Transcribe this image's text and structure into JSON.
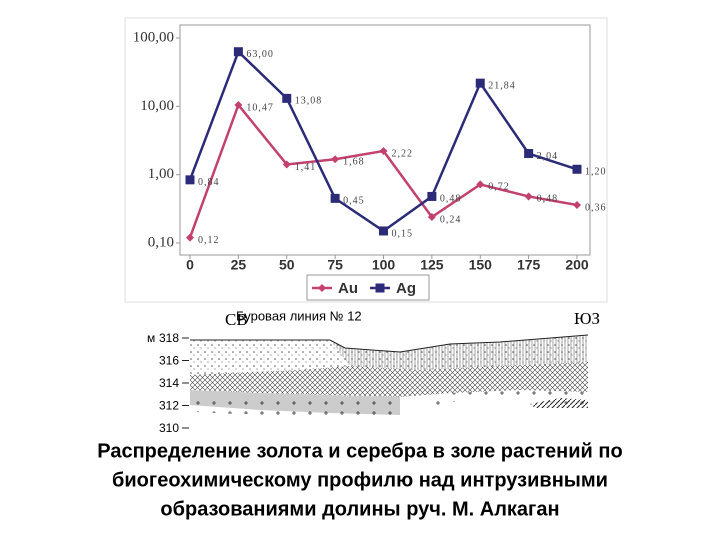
{
  "chart_data": {
    "type": "line",
    "x": [
      0,
      25,
      50,
      75,
      100,
      125,
      150,
      175,
      200
    ],
    "xlim": [
      0,
      200
    ],
    "xticks": [
      0,
      25,
      50,
      75,
      100,
      125,
      150,
      175,
      200
    ],
    "ylim": [
      0.1,
      100
    ],
    "log_scale": true,
    "yticks": [
      {
        "value": 0.1,
        "label": "0,10"
      },
      {
        "value": 1,
        "label": "1,00"
      },
      {
        "value": 10,
        "label": "10,00"
      },
      {
        "value": 100,
        "label": "100,00"
      }
    ],
    "legend": "bottom",
    "series": [
      {
        "name": "Au",
        "color": "#c2416e",
        "marker": "diamond",
        "values": [
          0.12,
          10.47,
          1.41,
          1.68,
          2.22,
          0.24,
          0.72,
          0.48,
          0.36
        ],
        "value_labels": [
          "0,12",
          "10,47",
          "1,41",
          "1,68",
          "2,22",
          "0,24",
          "0,72",
          "0,48",
          "0,36"
        ]
      },
      {
        "name": "Ag",
        "color": "#2b2b78",
        "marker": "square",
        "values": [
          0.84,
          63.0,
          13.08,
          0.45,
          0.15,
          0.48,
          21.84,
          2.04,
          1.2
        ],
        "value_labels": [
          "0,84",
          "63,00",
          "13,08",
          "0,45",
          "0,15",
          "0,48",
          "21,84",
          "2,04",
          "1,20"
        ]
      }
    ]
  },
  "section": {
    "left_label": "СВ",
    "title": "Буровая линия № 12",
    "right_label": "ЮЗ",
    "unit": "м",
    "depth_ticks": [
      318,
      316,
      314,
      312,
      310
    ]
  },
  "caption": [
    "Распределение золота и серебра в золе растений по",
    "биогеохимическому профилю над интрузивными",
    "образованиями долины руч. М. Алкаган"
  ]
}
